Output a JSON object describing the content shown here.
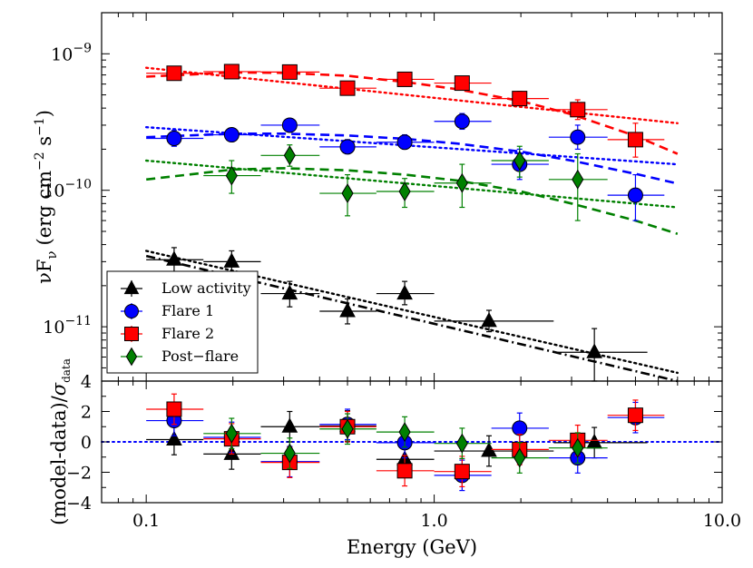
{
  "chart_data": {
    "type": "scatter",
    "x_scale": "log",
    "xlim": [
      0.07,
      10.0
    ],
    "x_ticks": [
      {
        "value": 0.1,
        "label": "0.1"
      },
      {
        "value": 1.0,
        "label": "1.0"
      },
      {
        "value": 10.0,
        "label": "10.0"
      }
    ],
    "xlabel": "Energy (GeV)",
    "top_panel": {
      "y_scale": "log",
      "ylim": [
        4e-12,
        2e-09
      ],
      "ylabel": "νF",
      "ylabel_sub": "ν",
      "ylabel_units": "(erg cm",
      "ylabel_exp1": "−2",
      "ylabel_mid": " s",
      "ylabel_exp2": "−1",
      "ylabel_close": ")",
      "y_ticks": [
        {
          "value": 1e-11,
          "base": "10",
          "exp": "−11"
        },
        {
          "value": 1e-10,
          "base": "10",
          "exp": "−10"
        },
        {
          "value": 1e-09,
          "base": "10",
          "exp": "−9"
        }
      ],
      "legend": {
        "position": "lower-left",
        "entries": [
          "Low activity",
          "Flare 1",
          "Flare 2",
          "Post−flare"
        ]
      },
      "series": [
        {
          "name": "Low activity",
          "color": "#000000",
          "marker": "triangle",
          "points": [
            {
              "x": 0.125,
              "y": 3.1e-11,
              "xlo": 0.1,
              "xhi": 0.158,
              "ylo": 2.5e-11,
              "yhi": 3.8e-11
            },
            {
              "x": 0.198,
              "y": 3e-11,
              "xlo": 0.158,
              "xhi": 0.25,
              "ylo": 2.5e-11,
              "yhi": 3.6e-11
            },
            {
              "x": 0.315,
              "y": 1.75e-11,
              "xlo": 0.25,
              "xhi": 0.4,
              "ylo": 1.4e-11,
              "yhi": 2.15e-11
            },
            {
              "x": 0.5,
              "y": 1.3e-11,
              "xlo": 0.4,
              "xhi": 0.63,
              "ylo": 1.05e-11,
              "yhi": 1.6e-11
            },
            {
              "x": 0.79,
              "y": 1.75e-11,
              "xlo": 0.63,
              "xhi": 1.0,
              "ylo": 1.45e-11,
              "yhi": 2.15e-11
            },
            {
              "x": 1.55,
              "y": 1.1e-11,
              "xlo": 1.0,
              "xhi": 2.6,
              "ylo": 9.2e-12,
              "yhi": 1.32e-11
            },
            {
              "x": 3.6,
              "y": 6.5e-12,
              "xlo": 2.6,
              "xhi": 5.5,
              "ylo": 4e-12,
              "yhi": 9.7e-12
            }
          ]
        },
        {
          "name": "Flare 1",
          "color": "#0000ff",
          "marker": "circle",
          "points": [
            {
              "x": 0.125,
              "y": 2.4e-10,
              "xlo": 0.1,
              "xhi": 0.158,
              "ylo": 2.1e-10,
              "yhi": 2.75e-10
            },
            {
              "x": 0.198,
              "y": 2.55e-10,
              "xlo": 0.158,
              "xhi": 0.25,
              "ylo": 2.3e-10,
              "yhi": 2.85e-10
            },
            {
              "x": 0.315,
              "y": 3e-10,
              "xlo": 0.25,
              "xhi": 0.4,
              "ylo": 2.75e-10,
              "yhi": 3.3e-10
            },
            {
              "x": 0.5,
              "y": 2.08e-10,
              "xlo": 0.4,
              "xhi": 0.63,
              "ylo": 1.85e-10,
              "yhi": 2.35e-10
            },
            {
              "x": 0.79,
              "y": 2.25e-10,
              "xlo": 0.63,
              "xhi": 1.0,
              "ylo": 2e-10,
              "yhi": 2.55e-10
            },
            {
              "x": 1.25,
              "y": 3.2e-10,
              "xlo": 1.0,
              "xhi": 1.58,
              "ylo": 2.8e-10,
              "yhi": 3.65e-10
            },
            {
              "x": 1.98,
              "y": 1.55e-10,
              "xlo": 1.58,
              "xhi": 2.5,
              "ylo": 1.2e-10,
              "yhi": 2e-10
            },
            {
              "x": 3.15,
              "y": 2.45e-10,
              "xlo": 2.5,
              "xhi": 4.0,
              "ylo": 2e-10,
              "yhi": 3e-10
            },
            {
              "x": 5.0,
              "y": 9.2e-11,
              "xlo": 4.0,
              "xhi": 6.3,
              "ylo": 6e-11,
              "yhi": 1.3e-10
            }
          ]
        },
        {
          "name": "Flare 2",
          "color": "#ff0000",
          "marker": "square",
          "points": [
            {
              "x": 0.125,
              "y": 7.2e-10,
              "xlo": 0.1,
              "xhi": 0.158,
              "ylo": 6.6e-10,
              "yhi": 7.9e-10
            },
            {
              "x": 0.198,
              "y": 7.4e-10,
              "xlo": 0.158,
              "xhi": 0.25,
              "ylo": 6.8e-10,
              "yhi": 8e-10
            },
            {
              "x": 0.315,
              "y": 7.35e-10,
              "xlo": 0.25,
              "xhi": 0.4,
              "ylo": 6.8e-10,
              "yhi": 7.9e-10
            },
            {
              "x": 0.5,
              "y": 5.6e-10,
              "xlo": 0.4,
              "xhi": 0.63,
              "ylo": 5e-10,
              "yhi": 6.2e-10
            },
            {
              "x": 0.79,
              "y": 6.5e-10,
              "xlo": 0.63,
              "xhi": 1.0,
              "ylo": 5.9e-10,
              "yhi": 7.1e-10
            },
            {
              "x": 1.25,
              "y": 6.1e-10,
              "xlo": 1.0,
              "xhi": 1.58,
              "ylo": 5.5e-10,
              "yhi": 6.7e-10
            },
            {
              "x": 1.98,
              "y": 4.7e-10,
              "xlo": 1.58,
              "xhi": 2.5,
              "ylo": 4.2e-10,
              "yhi": 5.3e-10
            },
            {
              "x": 3.15,
              "y": 3.9e-10,
              "xlo": 2.5,
              "xhi": 4.0,
              "ylo": 3.3e-10,
              "yhi": 4.6e-10
            },
            {
              "x": 5.0,
              "y": 2.35e-10,
              "xlo": 4.0,
              "xhi": 6.3,
              "ylo": 1.75e-10,
              "yhi": 3.1e-10
            }
          ]
        },
        {
          "name": "Post−flare",
          "color": "#008000",
          "marker": "diamond",
          "points": [
            {
              "x": 0.198,
              "y": 1.28e-10,
              "xlo": 0.158,
              "xhi": 0.25,
              "ylo": 9.5e-11,
              "yhi": 1.65e-10
            },
            {
              "x": 0.315,
              "y": 1.8e-10,
              "xlo": 0.25,
              "xhi": 0.4,
              "ylo": 1.5e-10,
              "yhi": 2.15e-10
            },
            {
              "x": 0.5,
              "y": 9.5e-11,
              "xlo": 0.4,
              "xhi": 0.63,
              "ylo": 6.5e-11,
              "yhi": 1.3e-10
            },
            {
              "x": 0.79,
              "y": 9.8e-11,
              "xlo": 0.63,
              "xhi": 1.0,
              "ylo": 7.5e-11,
              "yhi": 1.22e-10
            },
            {
              "x": 1.25,
              "y": 1.13e-10,
              "xlo": 1.0,
              "xhi": 1.58,
              "ylo": 7.5e-11,
              "yhi": 1.55e-10
            },
            {
              "x": 1.98,
              "y": 1.65e-10,
              "xlo": 1.58,
              "xhi": 2.5,
              "ylo": 1.25e-10,
              "yhi": 2.1e-10
            },
            {
              "x": 3.15,
              "y": 1.2e-10,
              "xlo": 2.5,
              "xhi": 4.0,
              "ylo": 6e-11,
              "yhi": 1.85e-10
            }
          ]
        }
      ],
      "models": [
        {
          "series": "Flare 2",
          "color": "#ff0000",
          "style": "dashed",
          "x": [
            0.1,
            0.2,
            0.3,
            0.5,
            0.8,
            1.2,
            2.0,
            3.0,
            5.0,
            7.0
          ],
          "y": [
            6.8e-10,
            7.3e-10,
            7.25e-10,
            6.9e-10,
            6.2e-10,
            5.5e-10,
            4.5e-10,
            3.6e-10,
            2.5e-10,
            1.85e-10
          ]
        },
        {
          "series": "Flare 2",
          "color": "#ff0000",
          "style": "dotted",
          "x": [
            0.1,
            7.0
          ],
          "y": [
            7.9e-10,
            3.1e-10
          ]
        },
        {
          "series": "Flare 1",
          "color": "#0000ff",
          "style": "dashed",
          "x": [
            0.1,
            0.2,
            0.3,
            0.5,
            0.8,
            1.2,
            2.0,
            3.0,
            5.0,
            7.0
          ],
          "y": [
            2.45e-10,
            2.6e-10,
            2.6e-10,
            2.52e-10,
            2.38e-10,
            2.2e-10,
            1.92e-10,
            1.65e-10,
            1.32e-10,
            1.12e-10
          ]
        },
        {
          "series": "Flare 1",
          "color": "#0000ff",
          "style": "dotted",
          "x": [
            0.1,
            7.0
          ],
          "y": [
            2.9e-10,
            1.55e-10
          ]
        },
        {
          "series": "Post−flare",
          "color": "#008000",
          "style": "dashed",
          "x": [
            0.1,
            0.2,
            0.3,
            0.5,
            0.8,
            1.2,
            2.0,
            3.0,
            5.0,
            7.0
          ],
          "y": [
            1.2e-10,
            1.42e-10,
            1.45e-10,
            1.4e-10,
            1.3e-10,
            1.18e-10,
            9.8e-11,
            8e-11,
            6e-11,
            4.8e-11
          ]
        },
        {
          "series": "Post−flare",
          "color": "#008000",
          "style": "dotted",
          "x": [
            0.1,
            7.0
          ],
          "y": [
            1.65e-10,
            7.5e-11
          ]
        },
        {
          "series": "Low activity",
          "color": "#000000",
          "style": "dashdot",
          "x": [
            0.1,
            7.0
          ],
          "y": [
            3.3e-11,
            4e-12
          ]
        },
        {
          "series": "Low activity",
          "color": "#000000",
          "style": "dotted",
          "x": [
            0.1,
            7.0
          ],
          "y": [
            3.6e-11,
            4.6e-12
          ]
        }
      ]
    },
    "bottom_panel": {
      "y_scale": "linear",
      "ylim": [
        -4,
        4
      ],
      "ylabel_main": "(model-data)/",
      "ylabel_sigma": "σ",
      "ylabel_sub": "data",
      "y_ticks": [
        {
          "value": -4,
          "label": "−4"
        },
        {
          "value": -2,
          "label": "−2"
        },
        {
          "value": 0,
          "label": "0"
        },
        {
          "value": 2,
          "label": "2"
        },
        {
          "value": 4,
          "label": "4"
        }
      ],
      "reference_line": {
        "y": 0,
        "color": "#0000ff",
        "style": "dotted"
      },
      "series": [
        {
          "name": "Low activity",
          "color": "#000000",
          "marker": "triangle",
          "points": [
            {
              "x": 0.125,
              "y": 0.15,
              "xlo": 0.1,
              "xhi": 0.158,
              "err": 1.0
            },
            {
              "x": 0.198,
              "y": -0.8,
              "xlo": 0.158,
              "xhi": 0.25,
              "err": 1.0
            },
            {
              "x": 0.315,
              "y": 1.0,
              "xlo": 0.25,
              "xhi": 0.4,
              "err": 1.0
            },
            {
              "x": 0.5,
              "y": 1.05,
              "xlo": 0.4,
              "xhi": 0.63,
              "err": 1.0
            },
            {
              "x": 0.79,
              "y": -1.15,
              "xlo": 0.63,
              "xhi": 1.0,
              "err": 1.0
            },
            {
              "x": 1.55,
              "y": -0.6,
              "xlo": 1.0,
              "xhi": 2.6,
              "err": 1.0
            },
            {
              "x": 3.6,
              "y": -0.05,
              "xlo": 2.6,
              "xhi": 5.5,
              "err": 1.0
            }
          ]
        },
        {
          "name": "Flare 1",
          "color": "#0000ff",
          "marker": "circle",
          "points": [
            {
              "x": 0.125,
              "y": 1.4,
              "xlo": 0.1,
              "xhi": 0.158,
              "err": 1.0
            },
            {
              "x": 0.198,
              "y": 0.3,
              "xlo": 0.158,
              "xhi": 0.25,
              "err": 1.0
            },
            {
              "x": 0.315,
              "y": -1.3,
              "xlo": 0.25,
              "xhi": 0.4,
              "err": 1.0
            },
            {
              "x": 0.5,
              "y": 1.15,
              "xlo": 0.4,
              "xhi": 0.63,
              "err": 1.0
            },
            {
              "x": 0.79,
              "y": -0.05,
              "xlo": 0.63,
              "xhi": 1.0,
              "err": 1.0
            },
            {
              "x": 1.25,
              "y": -2.2,
              "xlo": 1.0,
              "xhi": 1.58,
              "err": 1.0
            },
            {
              "x": 1.98,
              "y": 0.9,
              "xlo": 1.58,
              "xhi": 2.5,
              "err": 1.0
            },
            {
              "x": 3.15,
              "y": -1.05,
              "xlo": 2.5,
              "xhi": 4.0,
              "err": 1.0
            },
            {
              "x": 5.0,
              "y": 1.6,
              "xlo": 4.0,
              "xhi": 6.3,
              "err": 1.0
            }
          ]
        },
        {
          "name": "Flare 2",
          "color": "#ff0000",
          "marker": "square",
          "points": [
            {
              "x": 0.125,
              "y": 2.15,
              "xlo": 0.1,
              "xhi": 0.158,
              "err": 1.0
            },
            {
              "x": 0.198,
              "y": 0.2,
              "xlo": 0.158,
              "xhi": 0.25,
              "err": 1.0
            },
            {
              "x": 0.315,
              "y": -1.35,
              "xlo": 0.25,
              "xhi": 0.4,
              "err": 1.0
            },
            {
              "x": 0.5,
              "y": 1.0,
              "xlo": 0.4,
              "xhi": 0.63,
              "err": 1.0
            },
            {
              "x": 0.79,
              "y": -1.9,
              "xlo": 0.63,
              "xhi": 1.0,
              "err": 1.0
            },
            {
              "x": 1.25,
              "y": -1.95,
              "xlo": 1.0,
              "xhi": 1.58,
              "err": 1.0
            },
            {
              "x": 1.98,
              "y": -0.5,
              "xlo": 1.58,
              "xhi": 2.5,
              "err": 1.0
            },
            {
              "x": 3.15,
              "y": 0.1,
              "xlo": 2.5,
              "xhi": 4.0,
              "err": 1.0
            },
            {
              "x": 5.0,
              "y": 1.75,
              "xlo": 4.0,
              "xhi": 6.3,
              "err": 1.0
            }
          ]
        },
        {
          "name": "Post−flare",
          "color": "#008000",
          "marker": "diamond",
          "points": [
            {
              "x": 0.198,
              "y": 0.55,
              "xlo": 0.158,
              "xhi": 0.25,
              "err": 1.0
            },
            {
              "x": 0.315,
              "y": -0.75,
              "xlo": 0.25,
              "xhi": 0.4,
              "err": 1.0
            },
            {
              "x": 0.5,
              "y": 0.85,
              "xlo": 0.4,
              "xhi": 0.63,
              "err": 1.0
            },
            {
              "x": 0.79,
              "y": 0.65,
              "xlo": 0.63,
              "xhi": 1.0,
              "err": 1.0
            },
            {
              "x": 1.25,
              "y": -0.1,
              "xlo": 1.0,
              "xhi": 1.58,
              "err": 1.0
            },
            {
              "x": 1.98,
              "y": -1.05,
              "xlo": 1.58,
              "xhi": 2.5,
              "err": 1.0
            },
            {
              "x": 3.15,
              "y": -0.4,
              "xlo": 2.5,
              "xhi": 4.0,
              "err": 1.0
            }
          ]
        }
      ]
    }
  }
}
